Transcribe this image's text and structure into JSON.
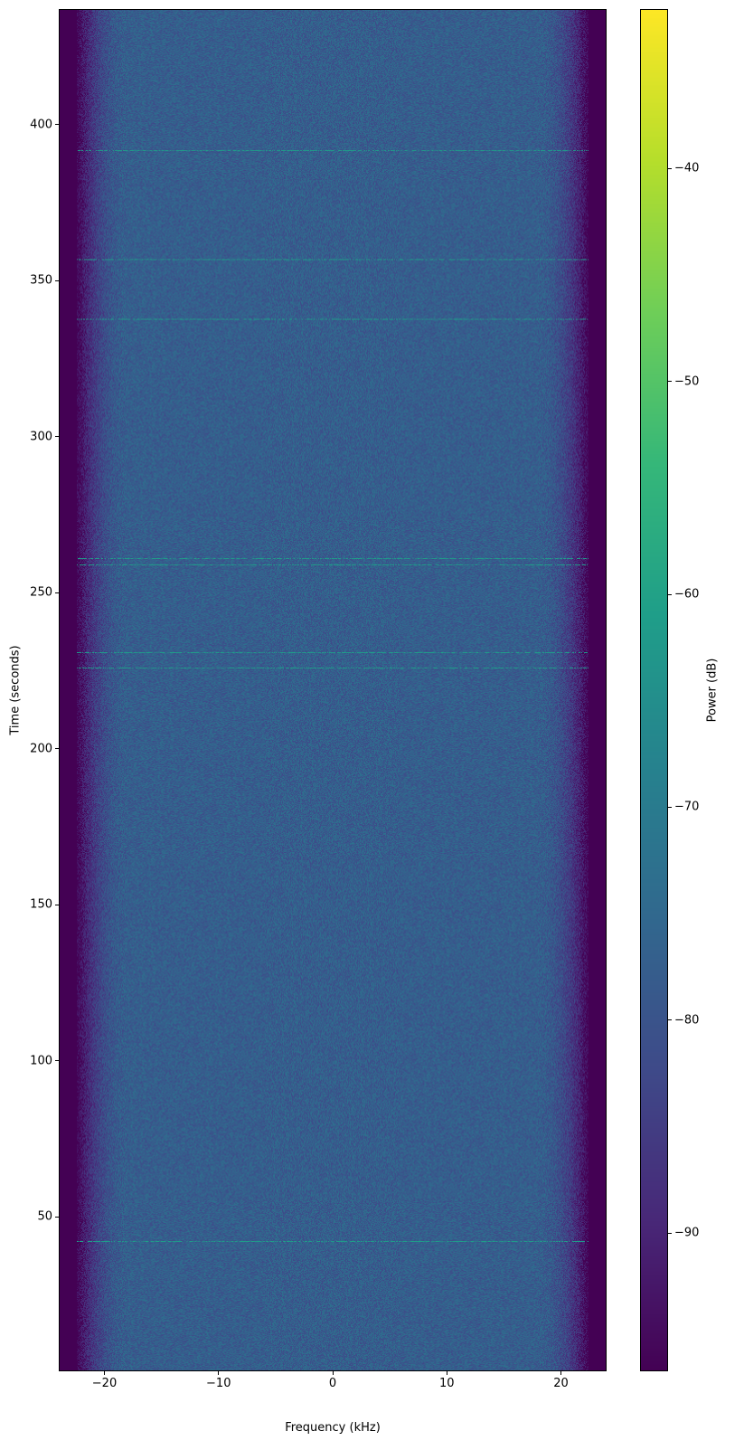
{
  "chart_data": {
    "type": "heatmap",
    "title": "",
    "xlabel": "Frequency (kHz)",
    "ylabel": "Time (seconds)",
    "xlim": [
      -24,
      24
    ],
    "ylim": [
      0.5,
      437
    ],
    "xticks": [
      -20,
      -10,
      0,
      10,
      20
    ],
    "xtick_labels": [
      "−20",
      "−10",
      "0",
      "10",
      "20"
    ],
    "yticks": [
      50,
      100,
      150,
      200,
      250,
      300,
      350,
      400
    ],
    "ytick_labels": [
      "50",
      "100",
      "150",
      "200",
      "250",
      "300",
      "350",
      "400"
    ],
    "colormap": "viridis",
    "colorbar": {
      "label": "Power (dB)",
      "clim": [
        -96.5,
        -32.5
      ],
      "ticks": [
        -90,
        -80,
        -70,
        -60,
        -50,
        -40
      ],
      "tick_labels": [
        "−90",
        "−80",
        "−70",
        "−60",
        "−50",
        "−40"
      ]
    },
    "grid": false,
    "power_profile": {
      "band_center_dB": -77,
      "band_edge_rolloff_kHz": [
        18,
        22.5
      ],
      "outside_band_dB": -96
    },
    "horizontal_lines_seconds": [
      42,
      226,
      231,
      259,
      261,
      338,
      357,
      392
    ]
  }
}
